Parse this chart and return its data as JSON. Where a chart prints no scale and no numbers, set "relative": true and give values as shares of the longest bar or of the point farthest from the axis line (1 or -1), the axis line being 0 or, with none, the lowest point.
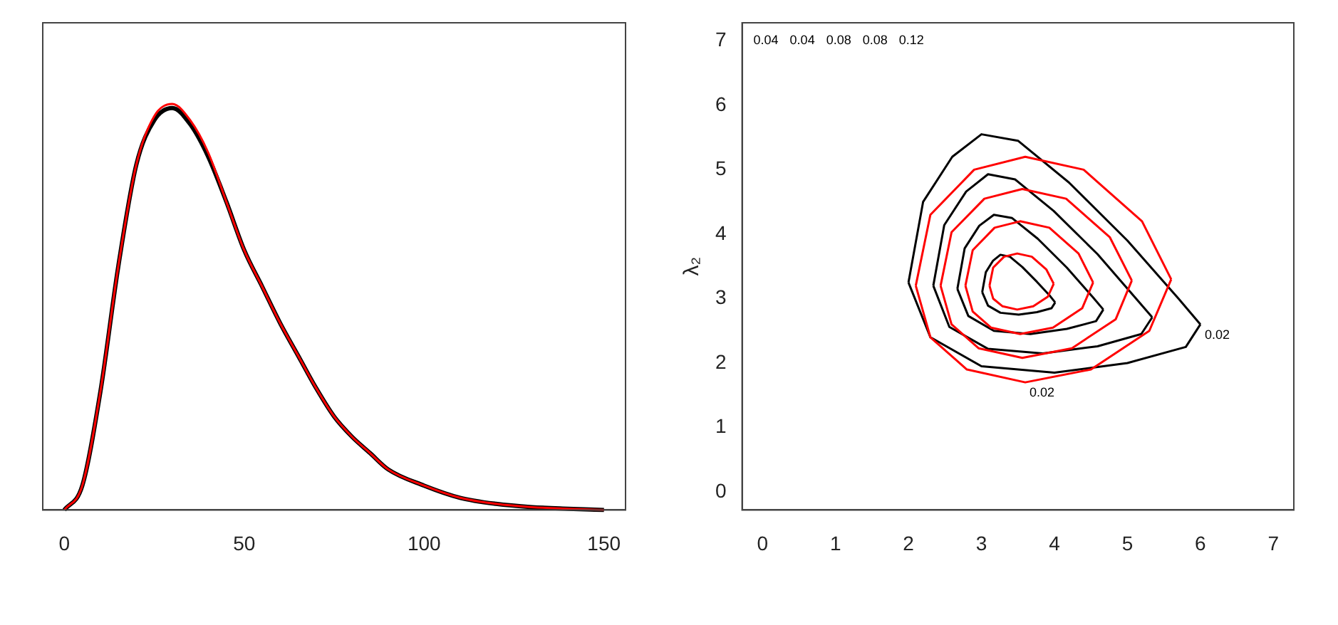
{
  "chart_data": [
    {
      "type": "line",
      "relative": true,
      "xlim": [
        -6,
        156
      ],
      "xticks": [
        0,
        50,
        100,
        150
      ],
      "grid": false,
      "legend": false,
      "marker": "none",
      "tick_labels": "x",
      "x": [
        0,
        5,
        10,
        15,
        20,
        25,
        30,
        35,
        40,
        45,
        50,
        55,
        60,
        65,
        70,
        75,
        80,
        85,
        90,
        100,
        110,
        120,
        130,
        140,
        150
      ],
      "series": [
        {
          "color": "#000000",
          "values": [
            0,
            0.06,
            0.29,
            0.6,
            0.85,
            0.96,
            0.99,
            0.95,
            0.87,
            0.76,
            0.64,
            0.55,
            0.46,
            0.38,
            0.3,
            0.23,
            0.18,
            0.14,
            0.1,
            0.06,
            0.03,
            0.015,
            0.007,
            0.003,
            0
          ]
        },
        {
          "color": "#ff0000",
          "values": [
            0,
            0.06,
            0.29,
            0.6,
            0.85,
            0.97,
            1,
            0.96,
            0.88,
            0.76,
            0.64,
            0.55,
            0.46,
            0.38,
            0.3,
            0.23,
            0.18,
            0.14,
            0.1,
            0.06,
            0.03,
            0.015,
            0.007,
            0.003,
            0
          ]
        }
      ]
    },
    {
      "type": "line",
      "ylabel": "λ₂",
      "xlim": [
        -0.28,
        7.28
      ],
      "ylim": [
        -0.28,
        7.28
      ],
      "xticks": [
        0,
        1,
        2,
        3,
        4,
        5,
        6,
        7
      ],
      "yticks": [
        0,
        1,
        2,
        3,
        4,
        5,
        6,
        7
      ],
      "grid": false,
      "legend": false,
      "marker": "none",
      "series": [
        {
          "color": "#000000",
          "x": [
            2.0,
            2.2,
            2.6,
            3.0,
            3.5,
            4.2,
            5.0,
            5.7,
            6.0
          ],
          "values": [
            3.25,
            4.5,
            5.2,
            5.55,
            5.45,
            4.8,
            3.9,
            3.0,
            2.6
          ]
        },
        {
          "color": "#000000",
          "x": [
            2.0,
            2.3,
            3.0,
            4.0,
            5.0,
            5.8,
            6.0
          ],
          "values": [
            3.25,
            2.4,
            1.95,
            1.85,
            2.0,
            2.25,
            2.6
          ]
        },
        {
          "color": "#000000",
          "x": [
            2.34,
            2.49,
            2.79,
            3.09,
            3.46,
            3.99,
            4.59,
            5.11,
            5.34
          ],
          "values": [
            3.2,
            4.14,
            4.66,
            4.93,
            4.85,
            4.36,
            3.69,
            3.01,
            2.71
          ]
        },
        {
          "color": "#000000",
          "x": [
            2.34,
            2.56,
            3.09,
            3.84,
            4.59,
            5.19,
            5.34
          ],
          "values": [
            3.2,
            2.56,
            2.22,
            2.15,
            2.26,
            2.45,
            2.71
          ]
        },
        {
          "color": "#000000",
          "x": [
            2.67,
            2.77,
            2.97,
            3.17,
            3.42,
            3.77,
            4.17,
            4.52,
            4.67
          ],
          "values": [
            3.15,
            3.78,
            4.13,
            4.3,
            4.25,
            3.93,
            3.48,
            3.03,
            2.83
          ]
        },
        {
          "color": "#000000",
          "x": [
            2.67,
            2.82,
            3.17,
            3.67,
            4.17,
            4.57,
            4.67
          ],
          "values": [
            3.15,
            2.73,
            2.5,
            2.45,
            2.53,
            2.65,
            2.83
          ]
        },
        {
          "color": "#000000",
          "x": [
            3.01,
            3.06,
            3.16,
            3.26,
            3.39,
            3.56,
            3.76,
            3.94,
            4.01
          ],
          "values": [
            3.1,
            3.41,
            3.59,
            3.68,
            3.65,
            3.49,
            3.26,
            3.04,
            2.94
          ]
        },
        {
          "color": "#000000",
          "x": [
            3.01,
            3.09,
            3.26,
            3.51,
            3.76,
            3.96,
            4.01
          ],
          "values": [
            3.1,
            2.89,
            2.78,
            2.75,
            2.79,
            2.85,
            2.94
          ]
        },
        {
          "color": "#ff0000",
          "x": [
            2.1,
            2.3,
            2.9,
            3.6,
            4.4,
            5.2,
            5.6
          ],
          "values": [
            3.2,
            4.3,
            5.0,
            5.2,
            5.0,
            4.2,
            3.3
          ]
        },
        {
          "color": "#ff0000",
          "x": [
            2.1,
            2.3,
            2.8,
            3.6,
            4.5,
            5.3,
            5.6
          ],
          "values": [
            3.2,
            2.4,
            1.9,
            1.7,
            1.9,
            2.5,
            3.3
          ]
        },
        {
          "color": "#ff0000",
          "x": [
            2.44,
            2.59,
            3.04,
            3.56,
            4.16,
            4.76,
            5.06
          ],
          "values": [
            3.2,
            4.03,
            4.55,
            4.7,
            4.55,
            3.95,
            3.28
          ]
        },
        {
          "color": "#ff0000",
          "x": [
            2.44,
            2.59,
            2.96,
            3.56,
            4.24,
            4.84,
            5.06
          ],
          "values": [
            3.2,
            2.6,
            2.23,
            2.08,
            2.23,
            2.68,
            3.28
          ]
        },
        {
          "color": "#ff0000",
          "x": [
            2.78,
            2.88,
            3.18,
            3.53,
            3.93,
            4.33,
            4.53
          ],
          "values": [
            3.2,
            3.75,
            4.1,
            4.2,
            4.1,
            3.7,
            3.25
          ]
        },
        {
          "color": "#ff0000",
          "x": [
            2.78,
            2.88,
            3.13,
            3.53,
            3.98,
            4.38,
            4.53
          ],
          "values": [
            3.2,
            2.8,
            2.55,
            2.45,
            2.55,
            2.85,
            3.25
          ]
        },
        {
          "color": "#ff0000",
          "x": [
            3.11,
            3.16,
            3.31,
            3.49,
            3.69,
            3.89,
            3.99
          ],
          "values": [
            3.2,
            3.48,
            3.65,
            3.7,
            3.65,
            3.45,
            3.23
          ]
        },
        {
          "color": "#ff0000",
          "x": [
            3.11,
            3.16,
            3.29,
            3.49,
            3.71,
            3.91,
            3.99
          ],
          "values": [
            3.2,
            3.0,
            2.88,
            2.83,
            2.88,
            3.03,
            3.23
          ]
        }
      ],
      "annotations": [
        "0.04",
        "0.04",
        "0.08",
        "0.08",
        "0.12",
        {
          "text": "0.02",
          "x": 6.0,
          "y": 2.6
        },
        {
          "text": "0.02",
          "x": 3.6,
          "y": 1.7
        }
      ]
    }
  ]
}
